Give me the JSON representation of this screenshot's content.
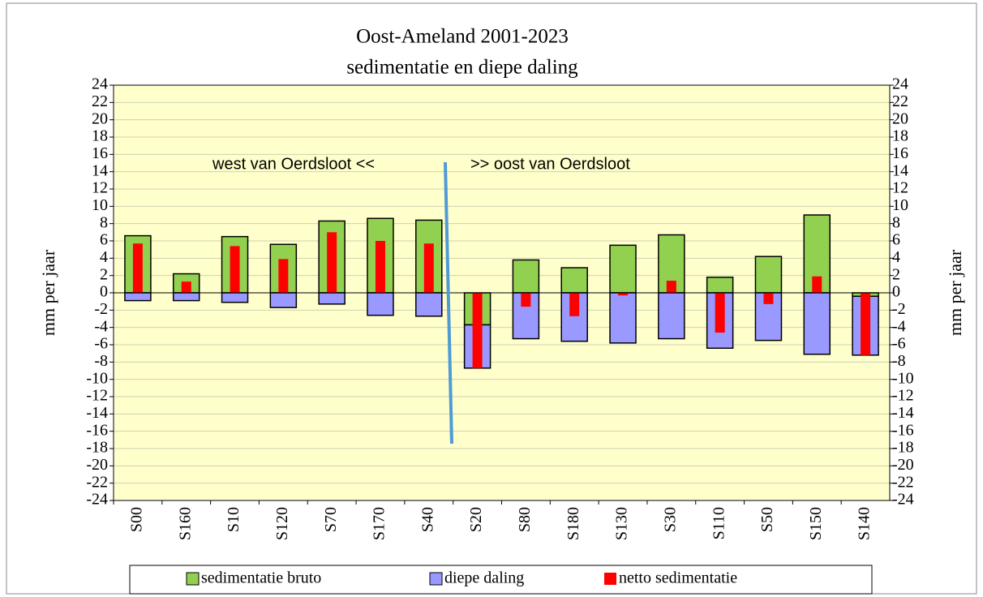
{
  "chart_data": {
    "type": "bar",
    "stacked": true,
    "title": "Oost-Ameland 2001-2023",
    "subtitle": "sedimentatie en diepe daling",
    "ylabel": "mm per jaar",
    "y2label": "mm per jaar",
    "annotations": [
      "west van Oerdsloot <<",
      ">> oost van Oerdsloot"
    ],
    "categories": [
      "S00",
      "S160",
      "S10",
      "S120",
      "S70",
      "S170",
      "S40",
      "S20",
      "S80",
      "S180",
      "S130",
      "S30",
      "S110",
      "S50",
      "S150",
      "S140"
    ],
    "series": [
      {
        "name": "sedimentatie bruto",
        "color": "#92d050",
        "values": [
          6.6,
          2.2,
          6.5,
          5.6,
          8.3,
          8.6,
          8.4,
          -3.7,
          3.8,
          2.9,
          5.5,
          6.7,
          1.8,
          4.2,
          9.0,
          -0.4
        ]
      },
      {
        "name": "diepe daling",
        "color": "#9999ff",
        "values": [
          -0.9,
          -0.9,
          -1.1,
          -1.7,
          -1.3,
          -2.6,
          -2.7,
          -5.0,
          -5.3,
          -5.6,
          -5.8,
          -5.3,
          -6.4,
          -5.5,
          -7.1,
          -6.8
        ]
      },
      {
        "name": "netto sedimentatie",
        "color": "#ff0000",
        "stacked": false,
        "values": [
          5.7,
          1.3,
          5.4,
          3.9,
          7.0,
          6.0,
          5.7,
          -8.7,
          -1.6,
          -2.7,
          -0.3,
          1.4,
          -4.6,
          -1.3,
          1.9,
          -7.2
        ]
      }
    ],
    "ylim": [
      -24,
      24
    ],
    "yticks": [
      -24,
      -22,
      -20,
      -18,
      -16,
      -14,
      -12,
      -10,
      -8,
      -6,
      -4,
      -2,
      0,
      2,
      4,
      6,
      8,
      10,
      12,
      14,
      16,
      18,
      20,
      22,
      24
    ],
    "y2lim": [
      -24,
      24
    ],
    "y2ticks": [
      -24,
      -22,
      -20,
      -18,
      -16,
      -14,
      -12,
      -10,
      -8,
      -6,
      -4,
      -2,
      0,
      2,
      4,
      6,
      8,
      10,
      12,
      14,
      16,
      18,
      20,
      22,
      24
    ],
    "grid": true,
    "legend": "bottom",
    "background": "#ffffcc"
  }
}
